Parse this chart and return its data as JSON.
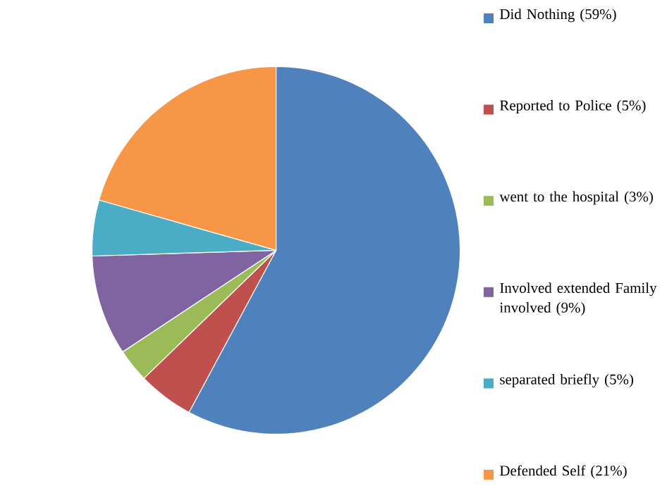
{
  "chart_data": {
    "type": "pie",
    "categories": [
      "Did Nothing (59%)",
      "Reported to Police (5%)",
      "went to the hospital (3%)",
      "Involved extended Family involved (9%)",
      "separated briefly (5%)",
      "Defended Self (21%)"
    ],
    "values": [
      59,
      5,
      3,
      9,
      5,
      21
    ],
    "colors": [
      "#4f81bd",
      "#c0504d",
      "#9bbb59",
      "#8064a2",
      "#4bacc6",
      "#f79646"
    ],
    "legend": "right"
  }
}
